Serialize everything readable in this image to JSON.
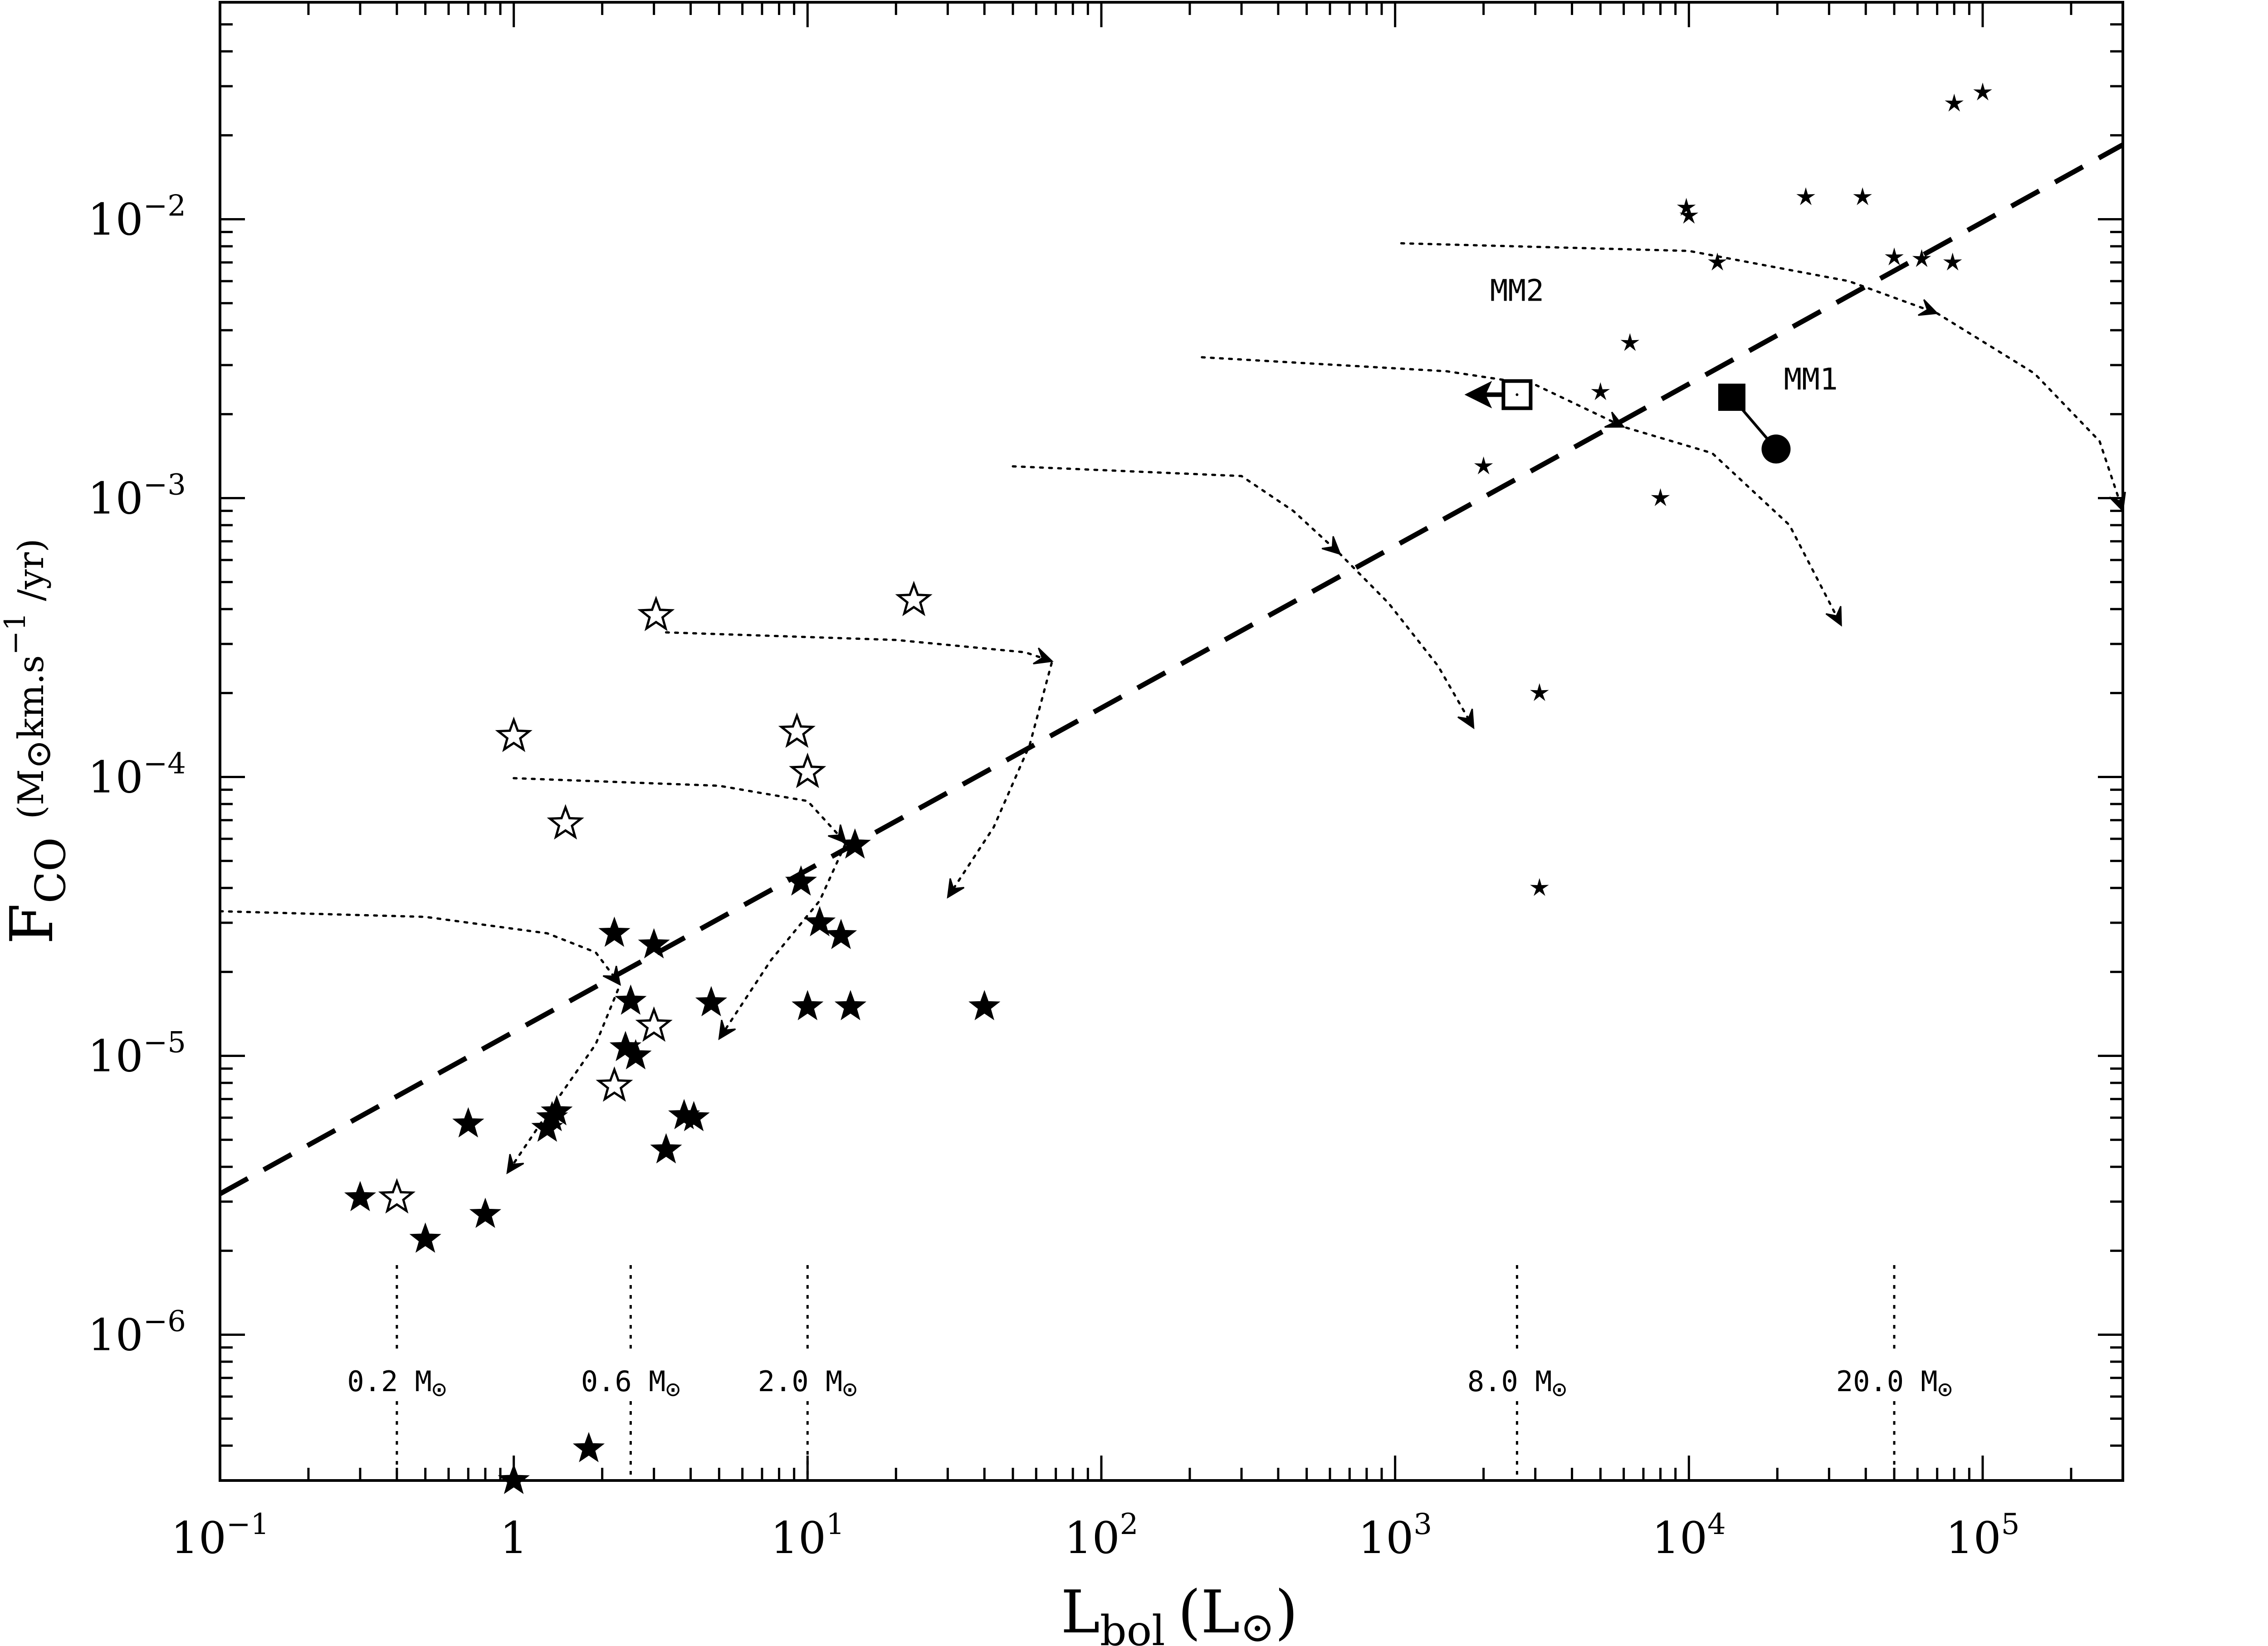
{
  "chart_data": {
    "type": "scatter",
    "xscale": "log",
    "yscale": "log",
    "xlim": [
      0.1,
      300000
    ],
    "ylim": [
      3e-07,
      0.06
    ],
    "xlabel": {
      "main": "L",
      "sub": "bol",
      "unit": "(L",
      "unit_sym": "⊙",
      "unit_close": ")"
    },
    "ylabel": {
      "main": "F",
      "sub": "CO",
      "unit_pre": "(M",
      "unit_sym": "⊙",
      "unit_mid": "km.s",
      "unit_exp": "−1",
      "unit_post": " /yr)"
    },
    "x_ticks": [
      {
        "value": 0.1,
        "base": "10",
        "exp": "−1"
      },
      {
        "value": 1,
        "base": "1",
        "exp": ""
      },
      {
        "value": 10,
        "base": "10",
        "exp": "1"
      },
      {
        "value": 100,
        "base": "10",
        "exp": "2"
      },
      {
        "value": 1000,
        "base": "10",
        "exp": "3"
      },
      {
        "value": 10000,
        "base": "10",
        "exp": "4"
      },
      {
        "value": 100000,
        "base": "10",
        "exp": "5"
      }
    ],
    "y_ticks": [
      {
        "value": 1e-06,
        "base": "10",
        "exp": "−6"
      },
      {
        "value": 1e-05,
        "base": "10",
        "exp": "−5"
      },
      {
        "value": 0.0001,
        "base": "10",
        "exp": "−4"
      },
      {
        "value": 0.001,
        "base": "10",
        "exp": "−3"
      },
      {
        "value": 0.01,
        "base": "10",
        "exp": "−2"
      }
    ],
    "fit_line": {
      "style": "dashed",
      "x": [
        0.1,
        300000
      ],
      "y": [
        3.2e-06,
        0.0185
      ]
    },
    "series": [
      {
        "name": "filled stars",
        "marker": "star-filled",
        "points": [
          [
            0.3,
            3.1e-06
          ],
          [
            0.5,
            2.2e-06
          ],
          [
            0.7,
            5.7e-06
          ],
          [
            0.8,
            2.7e-06
          ],
          [
            1.3,
            5.5e-06
          ],
          [
            1.35,
            6e-06
          ],
          [
            1.4,
            6.3e-06
          ],
          [
            1.8,
            3.9e-07
          ],
          [
            1,
            3e-07
          ],
          [
            2.2,
            2.75e-05
          ],
          [
            2.4,
            1.07e-05
          ],
          [
            2.5,
            1.57e-05
          ],
          [
            2.6,
            1e-05
          ],
          [
            3,
            2.5e-05
          ],
          [
            3.3,
            4.6e-06
          ],
          [
            3.8,
            6.1e-06
          ],
          [
            4.1,
            6e-06
          ],
          [
            4.7,
            1.55e-05
          ],
          [
            9.5,
            4.2e-05
          ],
          [
            10,
            1.5e-05
          ],
          [
            11,
            3e-05
          ],
          [
            13,
            2.7e-05
          ],
          [
            14,
            1.5e-05
          ],
          [
            14.5,
            5.7e-05
          ],
          [
            40,
            1.5e-05
          ]
        ]
      },
      {
        "name": "open stars",
        "marker": "star-open",
        "points": [
          [
            0.4,
            3.1e-06
          ],
          [
            1,
            0.00014
          ],
          [
            1.5,
            6.8e-05
          ],
          [
            2.2,
            7.8e-06
          ],
          [
            3,
            1.28e-05
          ],
          [
            3.05,
            0.00038
          ],
          [
            9.2,
            0.000145
          ],
          [
            10,
            0.000104
          ],
          [
            23,
            0.00043
          ]
        ]
      },
      {
        "name": "small stars",
        "marker": "asterisk",
        "points": [
          [
            2000,
            0.0013
          ],
          [
            3100,
            0.0002
          ],
          [
            3100,
            4e-05
          ],
          [
            5000,
            0.0024
          ],
          [
            6300,
            0.0036
          ],
          [
            8000,
            0.001
          ],
          [
            9800,
            0.011
          ],
          [
            10000,
            0.0103
          ],
          [
            12500,
            0.007
          ],
          [
            25000,
            0.012
          ],
          [
            39000,
            0.012
          ],
          [
            50000,
            0.0073
          ],
          [
            62000,
            0.0072
          ],
          [
            79000,
            0.007
          ],
          [
            80000,
            0.026
          ],
          [
            100000,
            0.0285
          ]
        ]
      },
      {
        "name": "MM2",
        "marker": "square-open",
        "points": [
          [
            2600,
            0.00235
          ]
        ],
        "upper_limit_to_x": 1750
      },
      {
        "name": "MM1 (square)",
        "marker": "square-filled",
        "points": [
          [
            14000,
            0.0023
          ]
        ]
      },
      {
        "name": "MM1 (circle)",
        "marker": "circle-filled",
        "points": [
          [
            19800,
            0.0015
          ]
        ]
      }
    ],
    "tracks": [
      [
        [
          0.1,
          3.3e-05
        ],
        [
          0.5,
          3.15e-05
        ],
        [
          1.3,
          2.75e-05
        ],
        [
          1.9,
          2.35e-05
        ],
        [
          2.3,
          1.8e-05
        ],
        [
          1.9,
          1.1e-05
        ],
        [
          1.3,
          6.2e-06
        ],
        [
          0.95,
          3.8e-06
        ]
      ],
      [
        [
          1,
          9.9e-05
        ],
        [
          5,
          9.3e-05
        ],
        [
          10,
          8.2e-05
        ],
        [
          13.5,
          5.8e-05
        ],
        [
          11,
          3.6e-05
        ],
        [
          7.5,
          2.2e-05
        ],
        [
          5,
          1.15e-05
        ]
      ],
      [
        [
          3.3,
          0.00033
        ],
        [
          20,
          0.00031
        ],
        [
          55,
          0.00028
        ],
        [
          68,
          0.00026
        ],
        [
          57,
          0.00013
        ],
        [
          43,
          6.6e-05
        ],
        [
          30,
          3.7e-05
        ]
      ],
      [
        [
          50,
          0.0013
        ],
        [
          300,
          0.0012
        ],
        [
          450,
          0.0009
        ],
        [
          650,
          0.00063
        ],
        [
          950,
          0.00042
        ],
        [
          1400,
          0.00025
        ],
        [
          1850,
          0.00015
        ]
      ],
      [
        [
          220,
          0.0032
        ],
        [
          1500,
          0.00285
        ],
        [
          3000,
          0.00255
        ],
        [
          6000,
          0.0018
        ],
        [
          12000,
          0.00145
        ],
        [
          22000,
          0.0008
        ],
        [
          33000,
          0.00035
        ]
      ],
      [
        [
          1050,
          0.0082
        ],
        [
          10000,
          0.0077
        ],
        [
          35000,
          0.006
        ],
        [
          70000,
          0.0046
        ],
        [
          150000,
          0.0028
        ],
        [
          250000,
          0.0016
        ],
        [
          300000,
          0.0009
        ]
      ]
    ],
    "mass_markers": [
      {
        "x": 0.4,
        "label": "0.2 M",
        "sym": "⊙"
      },
      {
        "x": 2.5,
        "label": "0.6 M",
        "sym": "⊙"
      },
      {
        "x": 10,
        "label": "2.0 M",
        "sym": "⊙"
      },
      {
        "x": 2600,
        "label": "8.0 M",
        "sym": "⊙"
      },
      {
        "x": 50000,
        "label": "20.0 M",
        "sym": "⊙"
      }
    ],
    "annotations": [
      {
        "text": "MM2",
        "x": 2600,
        "y": 0.0051
      },
      {
        "text": "MM1",
        "x": 26000,
        "y": 0.00245
      }
    ]
  }
}
